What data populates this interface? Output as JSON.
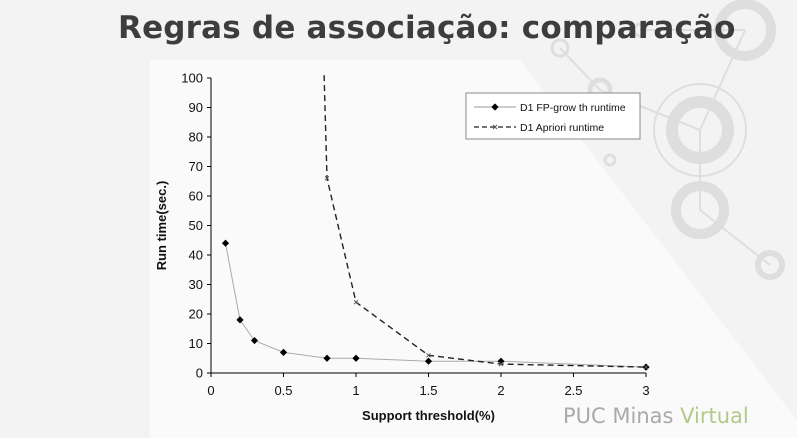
{
  "slide": {
    "title": "Regras de associação: comparação",
    "brand": {
      "name": "PUC Minas",
      "accent": "Virtual"
    },
    "colors": {
      "background": "#f3f3f3",
      "title": "#3d3d3d",
      "brand_gray": "#a9a9a9",
      "brand_green": "#b3c98a",
      "decor": "#dcdcdc"
    }
  },
  "chart_data": {
    "type": "line",
    "title": "",
    "xlabel": "Support threshold(%)",
    "ylabel": "Run time(sec.)",
    "xlim": [
      0,
      3
    ],
    "ylim": [
      0,
      100
    ],
    "xticks": [
      "0",
      "0.5",
      "1",
      "1.5",
      "2",
      "2.5",
      "3"
    ],
    "yticks": [
      "0",
      "10",
      "20",
      "30",
      "40",
      "50",
      "60",
      "70",
      "80",
      "90",
      "100"
    ],
    "grid": false,
    "legend_position": "top-right",
    "series": [
      {
        "name": "D1 FP-grow th runtime",
        "style": "solid",
        "marker": "diamond",
        "color": "#111111",
        "x": [
          0.1,
          0.2,
          0.3,
          0.5,
          0.8,
          1.0,
          1.5,
          2.0,
          3.0
        ],
        "y": [
          44,
          18,
          11,
          7,
          5,
          5,
          4,
          4,
          2
        ]
      },
      {
        "name": "D1 Apriori runtime",
        "style": "dashed",
        "marker": "x",
        "color": "#333333",
        "x": [
          0.78,
          0.8,
          1.0,
          1.5,
          2.0,
          3.0
        ],
        "y": [
          101,
          66,
          24,
          6,
          3,
          2
        ]
      }
    ]
  }
}
